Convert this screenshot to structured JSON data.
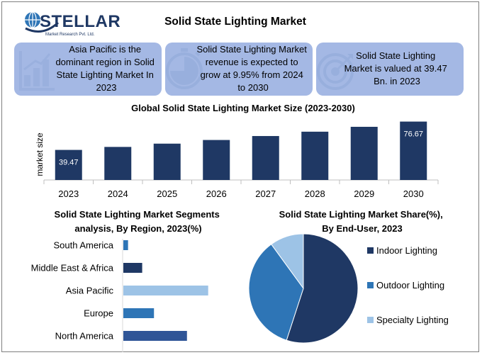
{
  "header": {
    "logo_text": "STELLAR",
    "logo_tagline": "Market Research Pvt. Ltd.",
    "title": "Solid State Lighting Market"
  },
  "cards": [
    {
      "icon": "bar-chart-icon",
      "lines": [
        "Asia Pacific is the",
        "dominant region in Solid",
        "State Lighting Market In",
        "2023"
      ]
    },
    {
      "icon": "stopwatch-icon",
      "lines": [
        "Solid State Lighting Market",
        "revenue is expected to",
        "grow at 9.95% from 2024",
        "to 2030"
      ]
    },
    {
      "icon": "target-icon",
      "lines": [
        "Solid State Lighting",
        "Market is valued at 39.47",
        "Bn. in 2023"
      ]
    }
  ],
  "colors": {
    "card_bg": "#a4b8e4",
    "navy": "#1f3864",
    "blue": "#2e75b6",
    "light_blue": "#9dc3e6",
    "region_blue": "#2f5597"
  },
  "chart_data": [
    {
      "type": "bar",
      "title": "Global Solid State Lighting Market Size (2023-2030)",
      "ylabel": "market size",
      "categories": [
        "2023",
        "2024",
        "2025",
        "2026",
        "2027",
        "2028",
        "2029",
        "2030"
      ],
      "values": [
        39.47,
        43.4,
        47.7,
        52.5,
        57.7,
        63.4,
        69.8,
        76.67
      ],
      "data_labels": {
        "0": "39.47",
        "7": "76.67"
      },
      "ylim": [
        0,
        80
      ]
    },
    {
      "type": "bar",
      "orientation": "horizontal",
      "title": "Solid State Lighting Market Segments analysis, By Region, 2023(%)",
      "title_lines": [
        "Solid State Lighting Market Segments",
        "analysis, By Region, 2023(%)"
      ],
      "categories": [
        "South America",
        "Middle East & Africa",
        "Asia Pacific",
        "Europe",
        "North America"
      ],
      "values": [
        2,
        8,
        36,
        13,
        27
      ],
      "colors": [
        "#2e75b6",
        "#1f3864",
        "#9dc3e6",
        "#2e75b6",
        "#2f5597"
      ],
      "xlim": [
        0,
        40
      ]
    },
    {
      "type": "pie",
      "title": "Solid State Lighting Market Share(%), By End-User, 2023",
      "title_lines": [
        "Solid State Lighting Market Share(%),",
        "By End-User, 2023"
      ],
      "labels": [
        "Indoor Lighting",
        "Outdoor Lighting",
        "Specialty Lighting"
      ],
      "values": [
        55,
        35,
        10
      ],
      "colors": [
        "#1f3864",
        "#2e75b6",
        "#9dc3e6"
      ],
      "legend": "right"
    }
  ]
}
